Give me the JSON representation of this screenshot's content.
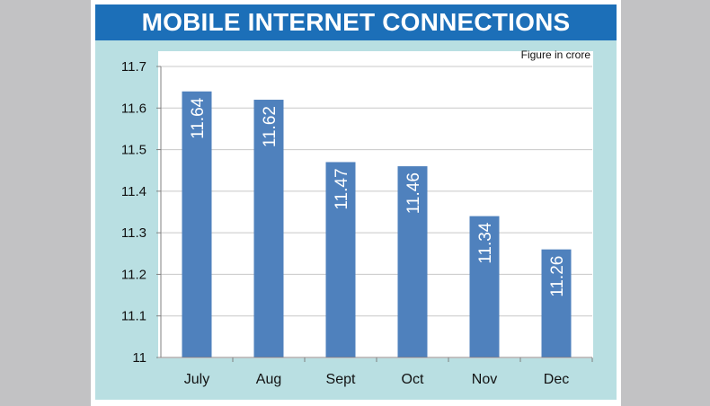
{
  "title": "MOBILE INTERNET CONNECTIONS",
  "colors": {
    "title_bar": "#1c6fb8",
    "panel": "#b9dfe2",
    "plot_bg": "#ffffff",
    "bar": "#4f81bd",
    "gridline": "#c8c8c8",
    "outer_background": "#c2c2c4"
  },
  "chart_data": {
    "type": "bar",
    "title": "MOBILE INTERNET CONNECTIONS",
    "unit_note": "Figure in crore",
    "categories": [
      "July",
      "Aug",
      "Sept",
      "Oct",
      "Nov",
      "Dec"
    ],
    "values": [
      11.64,
      11.62,
      11.47,
      11.46,
      11.34,
      11.26
    ],
    "value_labels": [
      "11.64",
      "11.62",
      "11.47",
      "11.46",
      "11.34",
      "11.26"
    ],
    "xlabel": "",
    "ylabel": "",
    "ylim": [
      11,
      11.7
    ],
    "yticks": [
      11,
      11.1,
      11.2,
      11.3,
      11.4,
      11.5,
      11.6,
      11.7
    ],
    "ytick_labels": [
      "11",
      "11.1",
      "11.2",
      "11.3",
      "11.4",
      "11.5",
      "11.6",
      "11.7"
    ],
    "grid": true,
    "legend": "none"
  }
}
